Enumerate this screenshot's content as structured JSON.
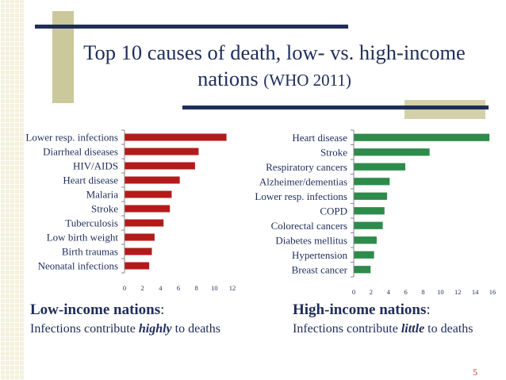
{
  "slide": {
    "title_main": "Top 10 causes of death, low- vs. high-income nations",
    "title_source": "(WHO 2011)",
    "page_number": "5"
  },
  "low": {
    "heading": "Low-income nations",
    "heading_colon": ":",
    "desc_before": "Infections contribute ",
    "desc_emphasis": "highly",
    "desc_after": " to deaths"
  },
  "high": {
    "heading": "High-income nations",
    "heading_colon": ":",
    "desc_before": "Infections contribute ",
    "desc_emphasis": "little",
    "desc_after": " to deaths"
  },
  "chart_data": [
    {
      "type": "bar",
      "orientation": "horizontal",
      "title": "Low-income nations",
      "color": "#b31b1b",
      "categories": [
        "Lower resp. infections",
        "Diarrheal diseases",
        "HIV/AIDS",
        "Heart disease",
        "Malaria",
        "Stroke",
        "Tuberculosis",
        "Low birth weight",
        "Birth traumas",
        "Neonatal infections"
      ],
      "values": [
        11.3,
        8.2,
        7.8,
        6.1,
        5.2,
        5.0,
        4.3,
        3.3,
        3.0,
        2.7
      ],
      "xlim": [
        0,
        12
      ],
      "xticks": [
        0,
        2,
        4,
        6,
        8,
        10,
        12
      ],
      "grid": false
    },
    {
      "type": "bar",
      "orientation": "horizontal",
      "title": "High-income nations",
      "color": "#2e8b4b",
      "categories": [
        "Heart disease",
        "Stroke",
        "Respiratory cancers",
        "Alzheimer/dementias",
        "Lower resp. infections",
        "COPD",
        "Colorectal cancers",
        "Diabetes mellitus",
        "Hypertension",
        "Breast cancer"
      ],
      "values": [
        15.6,
        8.7,
        5.9,
        4.1,
        3.8,
        3.5,
        3.3,
        2.6,
        2.3,
        1.9
      ],
      "xlim": [
        0,
        16
      ],
      "xticks": [
        0,
        2,
        4,
        6,
        8,
        10,
        12,
        14,
        16
      ],
      "grid": false
    }
  ]
}
